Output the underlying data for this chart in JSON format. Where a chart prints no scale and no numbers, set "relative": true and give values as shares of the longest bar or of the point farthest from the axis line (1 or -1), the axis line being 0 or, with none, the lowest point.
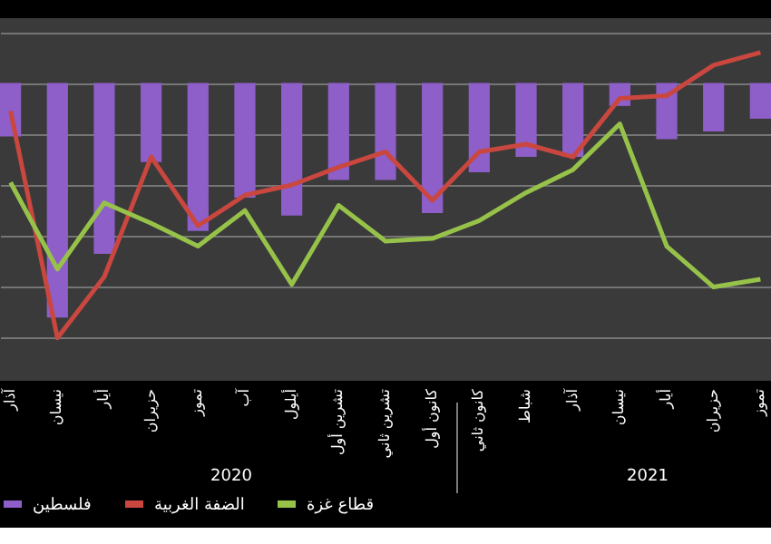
{
  "chart_data": {
    "type": "bar",
    "relative": true,
    "grid": "y",
    "legend": "bottom",
    "categories": [
      "آذار",
      "نيسان",
      "أيار",
      "حزيران",
      "تموز",
      "آب",
      "أيلول",
      "تشرين أول",
      "تشرين ثاني",
      "كانون أول",
      "كانون ثاني",
      "شباط",
      "آذار",
      "نيسان",
      "أيار",
      "حزيران",
      "تموز"
    ],
    "series": [
      {
        "name": "فلسطين",
        "color": "#8e5fc8",
        "values": [
          -0.21,
          -0.92,
          -0.67,
          -0.31,
          -0.58,
          -0.45,
          -0.52,
          -0.38,
          -0.38,
          -0.51,
          -0.35,
          -0.29,
          -0.29,
          -0.09,
          -0.22,
          -0.19,
          -0.14
        ]
      },
      {
        "name": "الضفة الغربية",
        "type": "line",
        "color": "#c9473f",
        "values": [
          -0.11,
          -1.0,
          -0.76,
          -0.29,
          -0.56,
          -0.44,
          -0.4,
          -0.33,
          -0.27,
          -0.46,
          -0.27,
          -0.24,
          -0.29,
          -0.06,
          -0.05,
          0.07,
          0.12
        ]
      },
      {
        "name": "قطاع غزة",
        "type": "line",
        "color": "#97c24a",
        "values": [
          -0.39,
          -0.73,
          -0.47,
          -0.55,
          -0.64,
          -0.5,
          -0.79,
          -0.48,
          -0.62,
          -0.61,
          -0.54,
          -0.43,
          -0.34,
          -0.16,
          -0.64,
          -0.8,
          -0.77
        ]
      }
    ],
    "annotations": [
      "2020",
      "2021"
    ]
  }
}
